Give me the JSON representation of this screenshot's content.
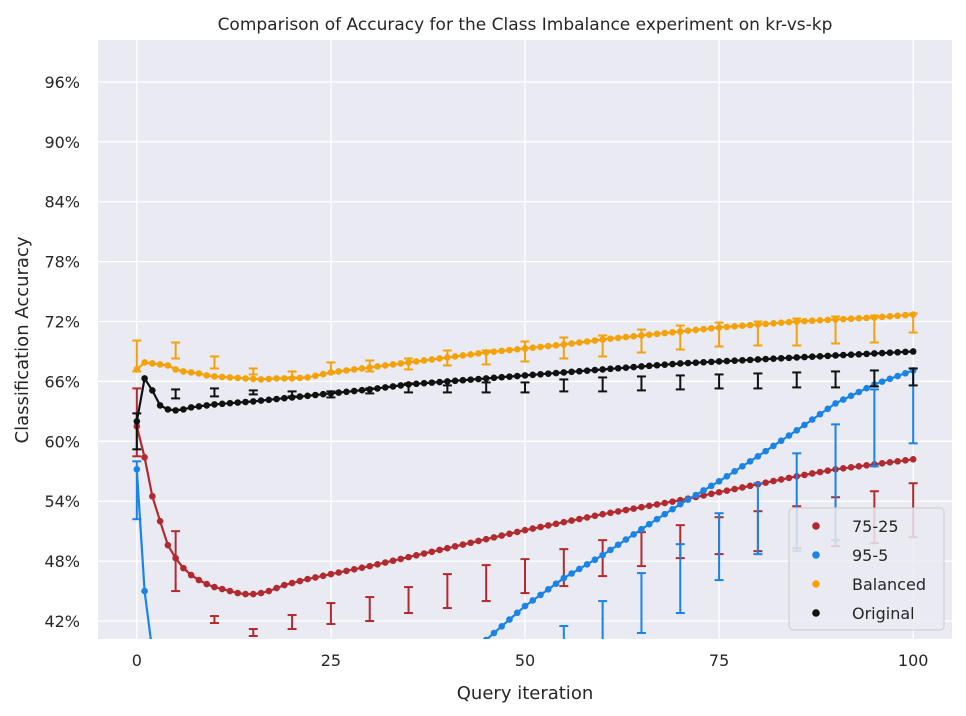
{
  "chart_data": {
    "type": "line",
    "title": "Comparison of Accuracy for the Class Imbalance experiment on kr-vs-kp",
    "xlabel": "Query iteration",
    "ylabel": "Classification Accuracy",
    "xlim": [
      -5,
      105
    ],
    "ylim": [
      40.2,
      100.2
    ],
    "xticks": [
      0,
      25,
      50,
      75,
      100
    ],
    "yticks": [
      42,
      48,
      54,
      60,
      66,
      72,
      78,
      84,
      90,
      96
    ],
    "ytick_labels": [
      "42%",
      "48%",
      "54%",
      "60%",
      "66%",
      "72%",
      "78%",
      "84%",
      "90%",
      "96%"
    ],
    "grid": true,
    "legend_position": "bottom-right",
    "series": [
      {
        "name": "75-25",
        "color": "#b22a30",
        "points": [
          [
            0,
            61.5
          ],
          [
            1,
            58.4
          ],
          [
            2,
            54.5
          ],
          [
            3,
            52.0
          ],
          [
            4,
            49.6
          ],
          [
            5,
            48.3
          ],
          [
            6,
            47.3
          ],
          [
            7,
            46.6
          ],
          [
            8,
            46.1
          ],
          [
            9,
            45.7
          ],
          [
            10,
            45.4
          ],
          [
            11,
            45.2
          ],
          [
            12,
            45.0
          ],
          [
            13,
            44.8
          ],
          [
            14,
            44.7
          ],
          [
            15,
            44.7
          ],
          [
            16,
            44.8
          ],
          [
            17,
            45.0
          ],
          [
            18,
            45.3
          ],
          [
            19,
            45.6
          ],
          [
            20,
            45.8
          ],
          [
            22,
            46.2
          ],
          [
            25,
            46.7
          ],
          [
            30,
            47.5
          ],
          [
            35,
            48.4
          ],
          [
            40,
            49.3
          ],
          [
            45,
            50.2
          ],
          [
            50,
            51.1
          ],
          [
            55,
            51.9
          ],
          [
            60,
            52.7
          ],
          [
            65,
            53.4
          ],
          [
            70,
            54.1
          ],
          [
            75,
            54.9
          ],
          [
            80,
            55.7
          ],
          [
            85,
            56.5
          ],
          [
            90,
            57.2
          ],
          [
            95,
            57.7
          ],
          [
            100,
            58.2
          ]
        ],
        "errorbars": [
          [
            0,
            65.3,
            58.5
          ],
          [
            5,
            51.0,
            45.0
          ],
          [
            10,
            42.5,
            41.8
          ],
          [
            15,
            41.2,
            40.5
          ],
          [
            20,
            42.6,
            41.2
          ],
          [
            25,
            43.8,
            41.7
          ],
          [
            30,
            44.4,
            42.0
          ],
          [
            35,
            45.4,
            42.8
          ],
          [
            40,
            46.7,
            43.3
          ],
          [
            45,
            47.6,
            44.0
          ],
          [
            50,
            48.2,
            44.8
          ],
          [
            55,
            49.2,
            45.5
          ],
          [
            60,
            50.1,
            46.5
          ],
          [
            65,
            50.9,
            47.5
          ],
          [
            70,
            51.6,
            48.3
          ],
          [
            75,
            52.4,
            48.7
          ],
          [
            80,
            53.0,
            49.0
          ],
          [
            85,
            53.5,
            49.3
          ],
          [
            90,
            54.4,
            49.5
          ],
          [
            95,
            55.0,
            49.8
          ],
          [
            100,
            55.8,
            50.4
          ]
        ]
      },
      {
        "name": "95-5",
        "color": "#1a84e6",
        "points": [
          [
            0,
            57.2
          ],
          [
            1,
            45.0
          ],
          [
            2,
            39.0
          ],
          [
            40,
            37.5
          ],
          [
            42,
            38.0
          ],
          [
            44,
            39.4
          ],
          [
            46,
            40.8
          ],
          [
            50,
            43.5
          ],
          [
            55,
            46.3
          ],
          [
            60,
            48.6
          ],
          [
            65,
            51.2
          ],
          [
            70,
            53.7
          ],
          [
            75,
            56.0
          ],
          [
            80,
            58.5
          ],
          [
            85,
            61.1
          ],
          [
            90,
            63.8
          ],
          [
            95,
            65.7
          ],
          [
            100,
            67.1
          ]
        ],
        "errorbars": [
          [
            0,
            58.0,
            52.2
          ],
          [
            55,
            41.5,
            39.0
          ],
          [
            60,
            44.0,
            39.0
          ],
          [
            65,
            46.8,
            40.8
          ],
          [
            70,
            49.7,
            42.8
          ],
          [
            75,
            52.8,
            46.1
          ],
          [
            80,
            55.8,
            48.7
          ],
          [
            85,
            58.8,
            49.0
          ],
          [
            90,
            61.7,
            50.1
          ],
          [
            95,
            65.2,
            57.5
          ],
          [
            100,
            67.3,
            59.8
          ]
        ]
      },
      {
        "name": "Balanced",
        "color": "#f5a20a",
        "points": [
          [
            0,
            67.2
          ],
          [
            1,
            67.9
          ],
          [
            2,
            67.8
          ],
          [
            3,
            67.7
          ],
          [
            4,
            67.6
          ],
          [
            5,
            67.2
          ],
          [
            6,
            67.0
          ],
          [
            7,
            66.9
          ],
          [
            8,
            66.8
          ],
          [
            9,
            66.6
          ],
          [
            10,
            66.5
          ],
          [
            12,
            66.4
          ],
          [
            14,
            66.3
          ],
          [
            16,
            66.2
          ],
          [
            18,
            66.3
          ],
          [
            20,
            66.3
          ],
          [
            22,
            66.4
          ],
          [
            25,
            66.9
          ],
          [
            30,
            67.4
          ],
          [
            35,
            67.9
          ],
          [
            40,
            68.4
          ],
          [
            45,
            68.9
          ],
          [
            50,
            69.3
          ],
          [
            55,
            69.7
          ],
          [
            60,
            70.2
          ],
          [
            65,
            70.6
          ],
          [
            70,
            71.0
          ],
          [
            75,
            71.4
          ],
          [
            80,
            71.7
          ],
          [
            85,
            72.0
          ],
          [
            90,
            72.2
          ],
          [
            95,
            72.4
          ],
          [
            100,
            72.7
          ]
        ],
        "errorbars": [
          [
            0,
            70.1,
            67.0
          ],
          [
            5,
            69.9,
            68.3
          ],
          [
            10,
            68.5,
            67.3
          ],
          [
            15,
            67.3,
            66.7
          ],
          [
            20,
            67.0,
            66.4
          ],
          [
            25,
            67.9,
            66.8
          ],
          [
            30,
            68.1,
            67.0
          ],
          [
            35,
            68.3,
            67.2
          ],
          [
            40,
            69.1,
            67.6
          ],
          [
            45,
            69.1,
            67.7
          ],
          [
            50,
            70.0,
            68.0
          ],
          [
            55,
            70.4,
            68.3
          ],
          [
            60,
            70.6,
            68.5
          ],
          [
            65,
            71.2,
            68.9
          ],
          [
            70,
            71.6,
            69.2
          ],
          [
            75,
            71.9,
            69.5
          ],
          [
            80,
            72.0,
            69.6
          ],
          [
            85,
            72.3,
            69.6
          ],
          [
            90,
            72.5,
            69.8
          ],
          [
            95,
            72.6,
            69.9
          ],
          [
            100,
            72.8,
            70.9
          ]
        ]
      },
      {
        "name": "Original",
        "color": "#111111",
        "points": [
          [
            0,
            62.0
          ],
          [
            1,
            66.3
          ],
          [
            2,
            65.1
          ],
          [
            3,
            63.6
          ],
          [
            4,
            63.2
          ],
          [
            5,
            63.1
          ],
          [
            6,
            63.2
          ],
          [
            7,
            63.4
          ],
          [
            8,
            63.5
          ],
          [
            10,
            63.7
          ],
          [
            15,
            64.0
          ],
          [
            20,
            64.4
          ],
          [
            25,
            64.8
          ],
          [
            30,
            65.2
          ],
          [
            35,
            65.7
          ],
          [
            40,
            66.0
          ],
          [
            45,
            66.3
          ],
          [
            50,
            66.6
          ],
          [
            55,
            66.9
          ],
          [
            60,
            67.2
          ],
          [
            65,
            67.5
          ],
          [
            70,
            67.8
          ],
          [
            75,
            68.0
          ],
          [
            80,
            68.2
          ],
          [
            85,
            68.4
          ],
          [
            90,
            68.6
          ],
          [
            95,
            68.8
          ],
          [
            100,
            69.0
          ]
        ],
        "errorbars": [
          [
            0,
            62.8,
            59.2
          ],
          [
            5,
            65.2,
            64.3
          ],
          [
            10,
            65.3,
            64.5
          ],
          [
            15,
            65.1,
            64.7
          ],
          [
            20,
            65.0,
            64.5
          ],
          [
            25,
            65.0,
            64.4
          ],
          [
            30,
            65.3,
            64.8
          ],
          [
            35,
            65.8,
            64.9
          ],
          [
            40,
            65.6,
            64.9
          ],
          [
            45,
            65.9,
            64.9
          ],
          [
            50,
            65.9,
            64.9
          ],
          [
            55,
            66.2,
            65.0
          ],
          [
            60,
            66.4,
            65.0
          ],
          [
            65,
            66.5,
            65.1
          ],
          [
            70,
            66.6,
            65.2
          ],
          [
            75,
            66.7,
            65.3
          ],
          [
            80,
            66.8,
            65.3
          ],
          [
            85,
            66.9,
            65.4
          ],
          [
            90,
            67.0,
            65.4
          ],
          [
            95,
            67.1,
            65.5
          ],
          [
            100,
            67.3,
            65.6
          ]
        ]
      }
    ]
  }
}
